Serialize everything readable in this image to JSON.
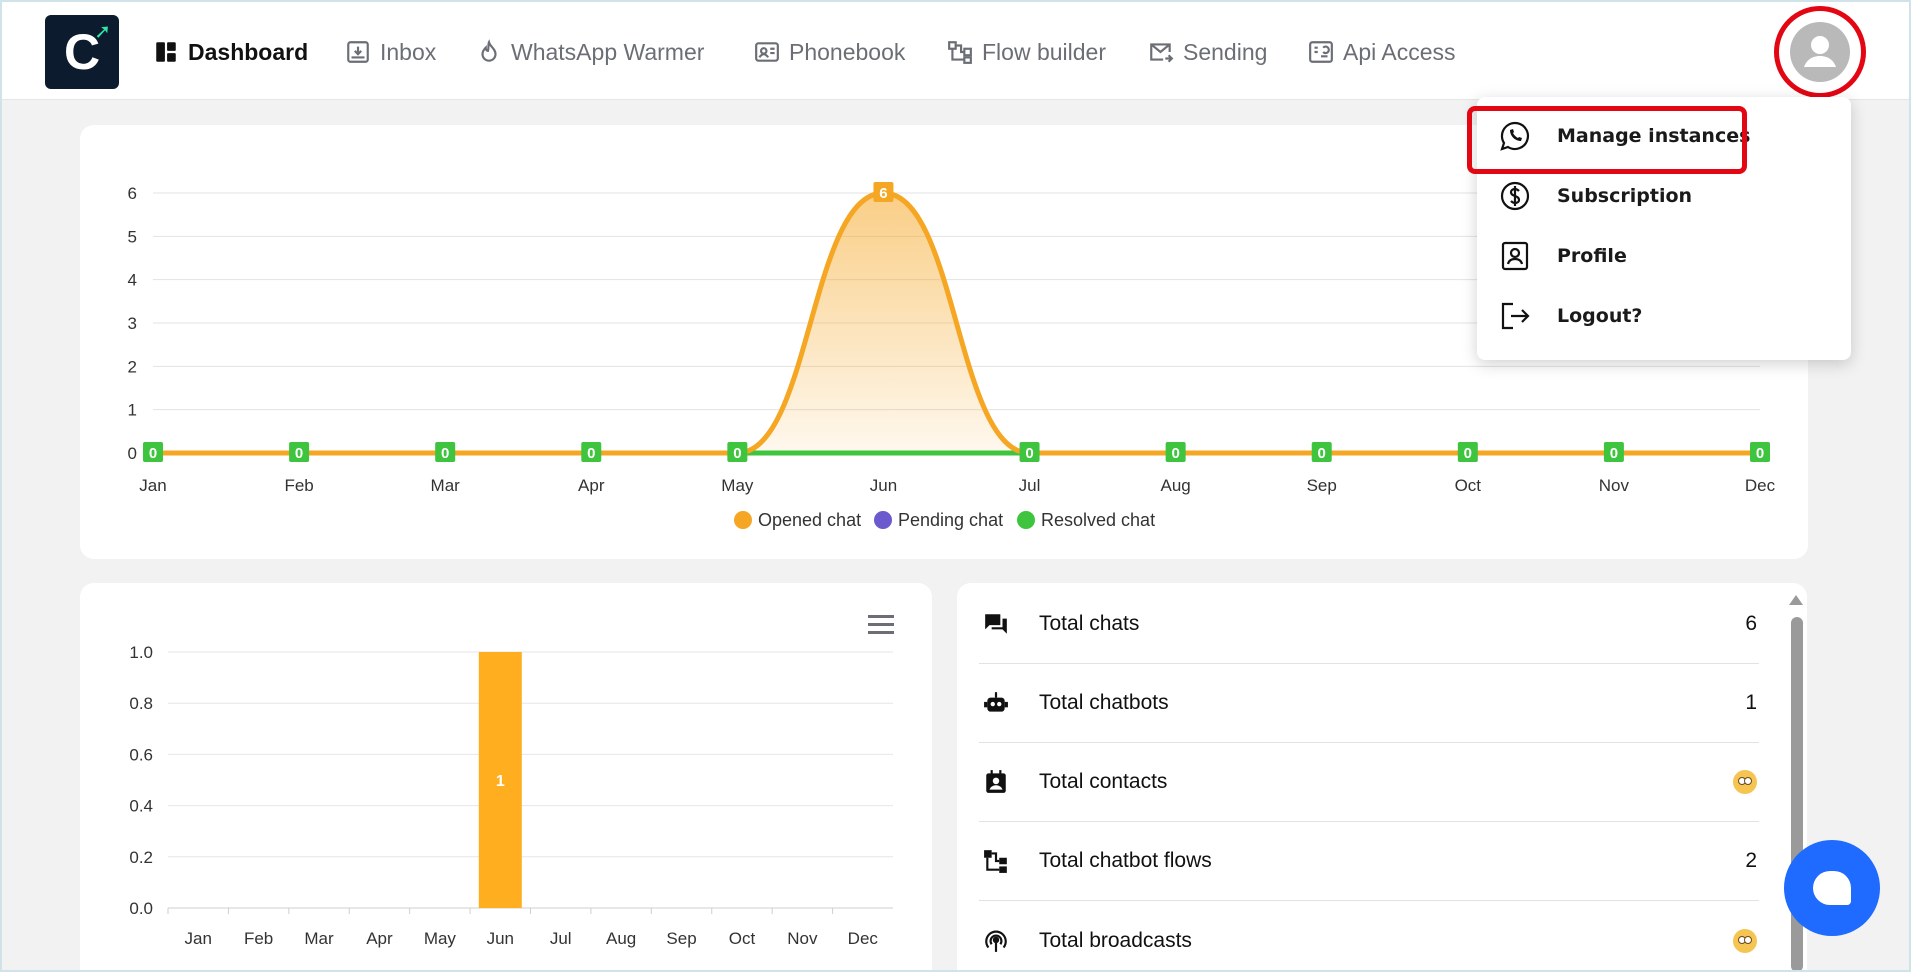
{
  "nav": {
    "logo_letter": "C",
    "items": [
      {
        "label": "Dashboard",
        "icon": "dashboard-icon",
        "active": true
      },
      {
        "label": "Inbox",
        "icon": "inbox-icon"
      },
      {
        "label": "WhatsApp Warmer",
        "icon": "flame-icon"
      },
      {
        "label": "Phonebook",
        "icon": "contact-card-icon"
      },
      {
        "label": "Flow builder",
        "icon": "flow-icon"
      },
      {
        "label": "Sending",
        "icon": "send-mail-icon"
      },
      {
        "label": "Api Access",
        "icon": "api-icon"
      }
    ]
  },
  "dropdown": {
    "items": [
      {
        "label": "Manage instances",
        "icon": "whatsapp-icon"
      },
      {
        "label": "Subscription",
        "icon": "dollar-circle-icon"
      },
      {
        "label": "Profile",
        "icon": "profile-card-icon"
      },
      {
        "label": "Logout?",
        "icon": "logout-icon"
      }
    ]
  },
  "colors": {
    "opened": "#f5a623",
    "pending": "#6a5acd",
    "resolved": "#3ec43e",
    "bar": "#ffae1f",
    "accent": "#1f6bff",
    "highlight": "#e30613"
  },
  "chart_data": [
    {
      "type": "area",
      "title": "",
      "categories": [
        "Jan",
        "Feb",
        "Mar",
        "Apr",
        "May",
        "Jun",
        "Jul",
        "Aug",
        "Sep",
        "Oct",
        "Nov",
        "Dec"
      ],
      "series": [
        {
          "name": "Opened chat",
          "values": [
            0,
            0,
            0,
            0,
            0,
            6,
            0,
            0,
            0,
            0,
            0,
            0
          ]
        },
        {
          "name": "Pending chat",
          "values": [
            0,
            0,
            0,
            0,
            0,
            0,
            0,
            0,
            0,
            0,
            0,
            0
          ]
        },
        {
          "name": "Resolved chat",
          "values": [
            0,
            0,
            0,
            0,
            0,
            0,
            0,
            0,
            0,
            0,
            0,
            0
          ]
        }
      ],
      "yticks": [
        "0",
        "1",
        "2",
        "3",
        "4",
        "5",
        "6"
      ],
      "ylim": [
        0,
        6
      ],
      "grid": true,
      "legend": "bottom-center"
    },
    {
      "type": "bar",
      "title": "",
      "categories": [
        "Jan",
        "Feb",
        "Mar",
        "Apr",
        "May",
        "Jun",
        "Jul",
        "Aug",
        "Sep",
        "Oct",
        "Nov",
        "Dec"
      ],
      "values": [
        0,
        0,
        0,
        0,
        0,
        1,
        0,
        0,
        0,
        0,
        0,
        0
      ],
      "yticks": [
        "0.0",
        "0.2",
        "0.4",
        "0.6",
        "0.8",
        "1.0"
      ],
      "ylim": [
        0,
        1.0
      ],
      "grid": true
    }
  ],
  "stats": [
    {
      "label": "Total chats",
      "value": "6",
      "icon": "chat-icon"
    },
    {
      "label": "Total chatbots",
      "value": "1",
      "icon": "robot-icon"
    },
    {
      "label": "Total contacts",
      "value": "",
      "icon": "contacts-icon",
      "emoji": true
    },
    {
      "label": "Total chatbot flows",
      "value": "2",
      "icon": "flow-icon"
    },
    {
      "label": "Total broadcasts",
      "value": "",
      "icon": "broadcast-icon",
      "emoji": true
    }
  ]
}
